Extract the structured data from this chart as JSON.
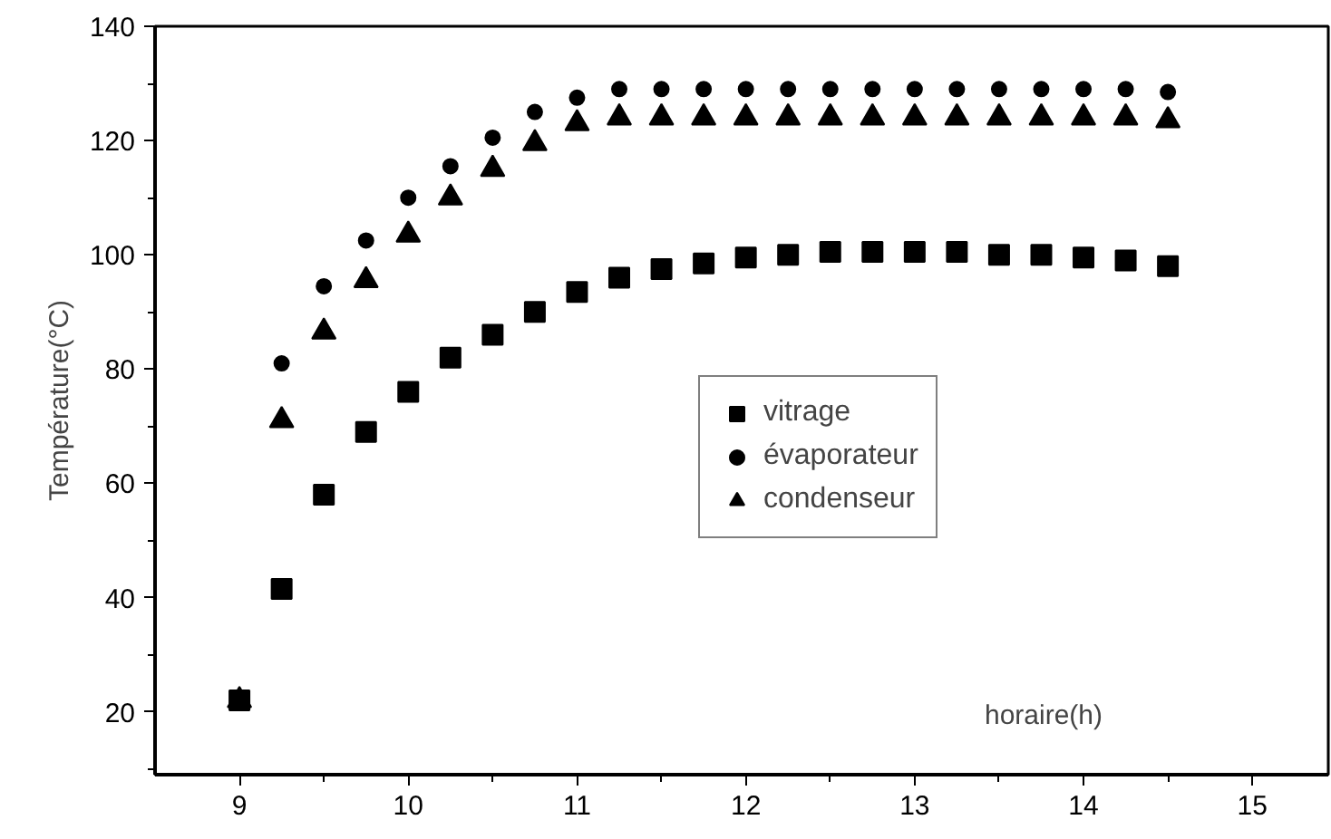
{
  "chart_data": {
    "type": "scatter",
    "xlabel": "horaire(h)",
    "ylabel": "Température(°C)",
    "x": [
      9,
      9.25,
      9.5,
      9.75,
      10,
      10.25,
      10.5,
      10.75,
      11,
      11.25,
      11.5,
      11.75,
      12,
      12.25,
      12.5,
      12.75,
      13,
      13.25,
      13.5,
      13.75,
      14,
      14.25,
      14.5
    ],
    "series": [
      {
        "name": "vitrage",
        "color": "#000000",
        "marker": "square",
        "values": [
          22,
          41.5,
          58,
          69,
          76,
          82,
          86,
          90,
          93.5,
          96,
          97.5,
          98.5,
          99.5,
          100,
          100.5,
          100.5,
          100.5,
          100.5,
          100,
          100,
          99.5,
          99,
          98
        ]
      },
      {
        "name": "évaporateur",
        "color": "#000000",
        "marker": "circle",
        "values": [
          null,
          81,
          94.5,
          102.5,
          110,
          115.5,
          120.5,
          125,
          127.5,
          129,
          129,
          129,
          129,
          129,
          129,
          129,
          129,
          129,
          129,
          129,
          129,
          129,
          128.5
        ]
      },
      {
        "name": "condenseur",
        "color": "#000000",
        "marker": "triangle",
        "values": [
          22,
          71,
          86.5,
          95.5,
          103.5,
          110,
          115,
          119.5,
          123,
          124,
          124,
          124,
          124,
          124,
          124,
          124,
          124,
          124,
          124,
          124,
          124,
          124,
          123.5
        ]
      }
    ],
    "xlim": [
      8.5,
      15.45
    ],
    "ylim": [
      9,
      140
    ],
    "xticks": [
      9,
      10,
      11,
      12,
      13,
      14,
      15
    ],
    "yticks": [
      20,
      40,
      60,
      80,
      100,
      120,
      140
    ],
    "grid": false,
    "legend": "right"
  }
}
